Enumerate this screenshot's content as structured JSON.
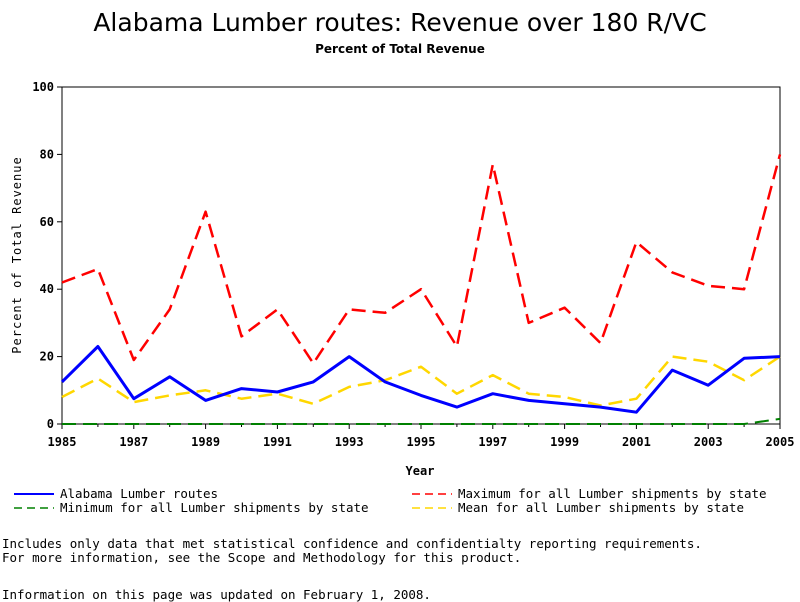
{
  "chart_data": {
    "type": "line",
    "title": "Alabama Lumber routes: Revenue over 180 R/VC",
    "subtitle": "Percent of Total Revenue",
    "xlabel": "Year",
    "ylabel": "Percent of Total Revenue",
    "xlim": [
      1985,
      2005
    ],
    "ylim": [
      0,
      100
    ],
    "x_ticks": [
      1985,
      1987,
      1989,
      1991,
      1993,
      1995,
      1997,
      1999,
      2001,
      2003,
      2005
    ],
    "y_ticks": [
      0,
      20,
      40,
      60,
      80,
      100
    ],
    "grid": false,
    "legend_position": "bottom",
    "x": [
      1985,
      1986,
      1987,
      1988,
      1989,
      1990,
      1991,
      1992,
      1993,
      1994,
      1995,
      1996,
      1997,
      1998,
      1999,
      2000,
      2001,
      2002,
      2003,
      2004,
      2005
    ],
    "series": [
      {
        "name": "Alabama Lumber routes",
        "color": "#0000ff",
        "style": "solid",
        "values": [
          12.5,
          23,
          7.5,
          14,
          7,
          10.5,
          9.5,
          12.5,
          20,
          12.5,
          8.5,
          5,
          9,
          7,
          6,
          5,
          3.5,
          16,
          11.5,
          19.5,
          20
        ]
      },
      {
        "name": "Maximum for all Lumber shipments by state",
        "color": "#ff0000",
        "style": "dashed",
        "values": [
          42,
          46,
          19,
          34,
          63,
          26,
          34,
          18,
          34,
          33,
          40,
          23,
          77,
          30,
          34.5,
          24,
          54,
          45,
          41,
          40,
          80
        ]
      },
      {
        "name": "Minimum for all Lumber shipments by state",
        "color": "#008000",
        "style": "dashed",
        "values": [
          0,
          0,
          0,
          0,
          0,
          0,
          0,
          0,
          0,
          0,
          0,
          0,
          0,
          0,
          0,
          0,
          0,
          0,
          0,
          0,
          1.5
        ]
      },
      {
        "name": "Mean for all Lumber shipments by state",
        "color": "#ffd700",
        "style": "dashed",
        "values": [
          8,
          13.5,
          6.5,
          8.5,
          10,
          7.5,
          9,
          6,
          11,
          13,
          17,
          9,
          14.5,
          9,
          8,
          5.5,
          7.5,
          20,
          18.5,
          13,
          20
        ]
      }
    ]
  },
  "notes": {
    "line1": "Includes only data that met statistical confidence and confidentialty reporting requirements.",
    "line2": "For more information, see the Scope and Methodology for this product.",
    "updated": "Information on this page was updated on February 1, 2008."
  }
}
